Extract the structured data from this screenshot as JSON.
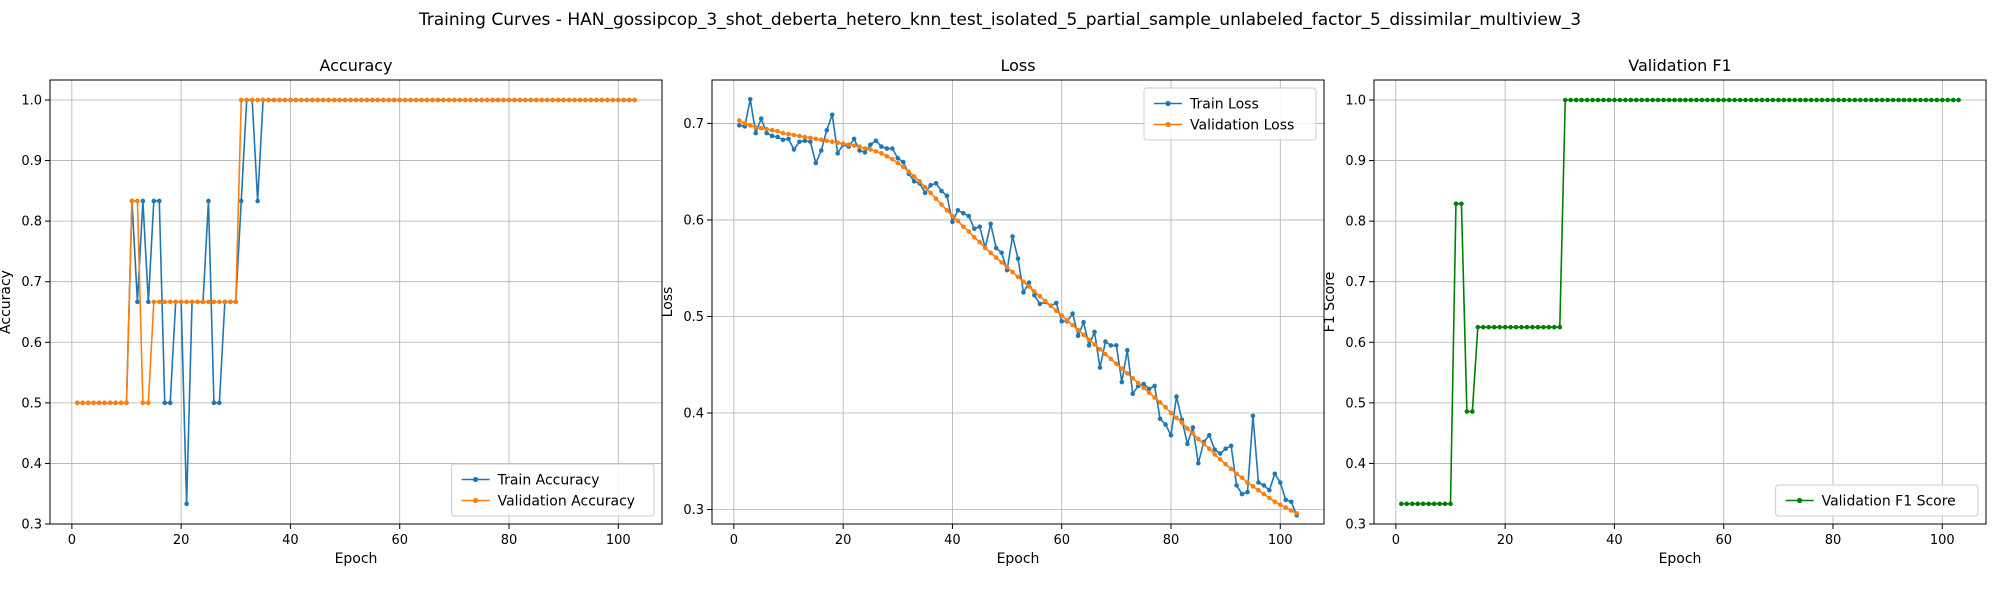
{
  "figure": {
    "title": "Training Curves - HAN_gossipcop_3_shot_deberta_hetero_knn_test_isolated_5_partial_sample_unlabeled_factor_5_dissimilar_multiview_3"
  },
  "colors": {
    "train": "#1f77b4",
    "validation": "#ff7f0e",
    "f1": "#008000",
    "grid": "#b0b0b0",
    "axis": "#000000"
  },
  "chart_data": [
    {
      "type": "line",
      "title": "Accuracy",
      "xlabel": "Epoch",
      "ylabel": "Accuracy",
      "xlim": [
        -4,
        108
      ],
      "ylim": [
        0.3,
        1.033
      ],
      "xticks": [
        0,
        20,
        40,
        60,
        80,
        100
      ],
      "yticks": [
        0.3,
        0.4,
        0.5,
        0.6,
        0.7,
        0.8,
        0.9,
        1.0
      ],
      "ytick_labels": [
        "0.3",
        "0.4",
        "0.5",
        "0.6",
        "0.7",
        "0.8",
        "0.9",
        "1.0"
      ],
      "grid": true,
      "legend_position": "lower-right",
      "series": [
        {
          "name": "Train Accuracy",
          "color_key": "train",
          "x_start": 1,
          "values": [
            0.5,
            0.5,
            0.5,
            0.5,
            0.5,
            0.5,
            0.5,
            0.5,
            0.5,
            0.5,
            0.8333,
            0.6667,
            0.8333,
            0.6667,
            0.8333,
            0.8333,
            0.5,
            0.5,
            0.6667,
            0.6667,
            0.3333,
            0.6667,
            0.6667,
            0.6667,
            0.8333,
            0.5,
            0.5,
            0.6667,
            0.6667,
            0.6667,
            0.8333,
            1.0,
            1.0,
            0.8333,
            1.0,
            1.0,
            1.0,
            1.0,
            1.0,
            1.0,
            1.0,
            1.0,
            1.0,
            1.0,
            1.0,
            1.0,
            1.0,
            1.0,
            1.0,
            1.0,
            1.0,
            1.0,
            1.0,
            1.0,
            1.0,
            1.0,
            1.0,
            1.0,
            1.0,
            1.0,
            1.0,
            1.0,
            1.0,
            1.0,
            1.0,
            1.0,
            1.0,
            1.0,
            1.0,
            1.0,
            1.0,
            1.0,
            1.0,
            1.0,
            1.0,
            1.0,
            1.0,
            1.0,
            1.0,
            1.0,
            1.0,
            1.0,
            1.0,
            1.0,
            1.0,
            1.0,
            1.0,
            1.0,
            1.0,
            1.0,
            1.0,
            1.0,
            1.0,
            1.0,
            1.0,
            1.0,
            1.0,
            1.0,
            1.0,
            1.0,
            1.0,
            1.0,
            1.0
          ]
        },
        {
          "name": "Validation Accuracy",
          "color_key": "validation",
          "x_start": 1,
          "values": [
            0.5,
            0.5,
            0.5,
            0.5,
            0.5,
            0.5,
            0.5,
            0.5,
            0.5,
            0.5,
            0.8333,
            0.8333,
            0.5,
            0.5,
            0.6667,
            0.6667,
            0.6667,
            0.6667,
            0.6667,
            0.6667,
            0.6667,
            0.6667,
            0.6667,
            0.6667,
            0.6667,
            0.6667,
            0.6667,
            0.6667,
            0.6667,
            0.6667,
            1.0,
            1.0,
            1.0,
            1.0,
            1.0,
            1.0,
            1.0,
            1.0,
            1.0,
            1.0,
            1.0,
            1.0,
            1.0,
            1.0,
            1.0,
            1.0,
            1.0,
            1.0,
            1.0,
            1.0,
            1.0,
            1.0,
            1.0,
            1.0,
            1.0,
            1.0,
            1.0,
            1.0,
            1.0,
            1.0,
            1.0,
            1.0,
            1.0,
            1.0,
            1.0,
            1.0,
            1.0,
            1.0,
            1.0,
            1.0,
            1.0,
            1.0,
            1.0,
            1.0,
            1.0,
            1.0,
            1.0,
            1.0,
            1.0,
            1.0,
            1.0,
            1.0,
            1.0,
            1.0,
            1.0,
            1.0,
            1.0,
            1.0,
            1.0,
            1.0,
            1.0,
            1.0,
            1.0,
            1.0,
            1.0,
            1.0,
            1.0,
            1.0,
            1.0,
            1.0,
            1.0,
            1.0,
            1.0
          ]
        }
      ]
    },
    {
      "type": "line",
      "title": "Loss",
      "xlabel": "Epoch",
      "ylabel": "Loss",
      "xlim": [
        -4,
        108
      ],
      "ylim": [
        0.285,
        0.745
      ],
      "xticks": [
        0,
        20,
        40,
        60,
        80,
        100
      ],
      "yticks": [
        0.3,
        0.4,
        0.5,
        0.6,
        0.7
      ],
      "ytick_labels": [
        "0.3",
        "0.4",
        "0.5",
        "0.6",
        "0.7"
      ],
      "grid": true,
      "legend_position": "upper-right",
      "series": [
        {
          "name": "Train Loss",
          "color_key": "train",
          "x_start": 1,
          "values": [
            0.698,
            0.697,
            0.725,
            0.69,
            0.705,
            0.69,
            0.687,
            0.686,
            0.683,
            0.684,
            0.673,
            0.681,
            0.682,
            0.681,
            0.659,
            0.672,
            0.693,
            0.709,
            0.669,
            0.678,
            0.676,
            0.684,
            0.672,
            0.67,
            0.678,
            0.682,
            0.676,
            0.674,
            0.674,
            0.664,
            0.66,
            0.648,
            0.64,
            0.638,
            0.628,
            0.636,
            0.638,
            0.63,
            0.625,
            0.598,
            0.61,
            0.607,
            0.604,
            0.591,
            0.593,
            0.571,
            0.596,
            0.571,
            0.566,
            0.548,
            0.583,
            0.56,
            0.525,
            0.535,
            0.522,
            0.513,
            0.515,
            0.511,
            0.514,
            0.495,
            0.495,
            0.503,
            0.48,
            0.494,
            0.47,
            0.484,
            0.447,
            0.474,
            0.47,
            0.47,
            0.432,
            0.465,
            0.42,
            0.428,
            0.43,
            0.425,
            0.428,
            0.394,
            0.388,
            0.377,
            0.417,
            0.393,
            0.368,
            0.385,
            0.348,
            0.37,
            0.377,
            0.362,
            0.358,
            0.363,
            0.366,
            0.325,
            0.316,
            0.318,
            0.397,
            0.328,
            0.325,
            0.32,
            0.337,
            0.328,
            0.31,
            0.308,
            0.294
          ]
        },
        {
          "name": "Validation Loss",
          "color_key": "validation",
          "x_start": 1,
          "values": [
            0.703,
            0.7,
            0.698,
            0.696,
            0.695,
            0.694,
            0.693,
            0.692,
            0.69,
            0.689,
            0.688,
            0.687,
            0.686,
            0.685,
            0.684,
            0.683,
            0.682,
            0.681,
            0.68,
            0.679,
            0.678,
            0.677,
            0.676,
            0.674,
            0.673,
            0.671,
            0.669,
            0.666,
            0.663,
            0.659,
            0.655,
            0.65,
            0.645,
            0.64,
            0.634,
            0.628,
            0.622,
            0.616,
            0.61,
            0.604,
            0.599,
            0.593,
            0.588,
            0.582,
            0.577,
            0.571,
            0.566,
            0.561,
            0.556,
            0.551,
            0.546,
            0.541,
            0.536,
            0.531,
            0.526,
            0.521,
            0.516,
            0.511,
            0.506,
            0.501,
            0.496,
            0.491,
            0.486,
            0.481,
            0.476,
            0.471,
            0.466,
            0.461,
            0.456,
            0.451,
            0.446,
            0.441,
            0.436,
            0.431,
            0.426,
            0.421,
            0.416,
            0.411,
            0.406,
            0.4,
            0.395,
            0.39,
            0.384,
            0.379,
            0.373,
            0.368,
            0.363,
            0.357,
            0.352,
            0.347,
            0.342,
            0.337,
            0.333,
            0.328,
            0.324,
            0.32,
            0.316,
            0.312,
            0.308,
            0.305,
            0.302,
            0.299,
            0.296
          ]
        }
      ]
    },
    {
      "type": "line",
      "title": "Validation F1",
      "xlabel": "Epoch",
      "ylabel": "F1 Score",
      "xlim": [
        -4,
        108
      ],
      "ylim": [
        0.3,
        1.033
      ],
      "xticks": [
        0,
        20,
        40,
        60,
        80,
        100
      ],
      "yticks": [
        0.3,
        0.4,
        0.5,
        0.6,
        0.7,
        0.8,
        0.9,
        1.0
      ],
      "ytick_labels": [
        "0.3",
        "0.4",
        "0.5",
        "0.6",
        "0.7",
        "0.8",
        "0.9",
        "1.0"
      ],
      "grid": true,
      "legend_position": "lower-right",
      "series": [
        {
          "name": "Validation F1 Score",
          "color_key": "f1",
          "x_start": 1,
          "values": [
            0.3333,
            0.3333,
            0.3333,
            0.3333,
            0.3333,
            0.3333,
            0.3333,
            0.3333,
            0.3333,
            0.3333,
            0.8286,
            0.8286,
            0.4857,
            0.4857,
            0.625,
            0.625,
            0.625,
            0.625,
            0.625,
            0.625,
            0.625,
            0.625,
            0.625,
            0.625,
            0.625,
            0.625,
            0.625,
            0.625,
            0.625,
            0.625,
            1.0,
            1.0,
            1.0,
            1.0,
            1.0,
            1.0,
            1.0,
            1.0,
            1.0,
            1.0,
            1.0,
            1.0,
            1.0,
            1.0,
            1.0,
            1.0,
            1.0,
            1.0,
            1.0,
            1.0,
            1.0,
            1.0,
            1.0,
            1.0,
            1.0,
            1.0,
            1.0,
            1.0,
            1.0,
            1.0,
            1.0,
            1.0,
            1.0,
            1.0,
            1.0,
            1.0,
            1.0,
            1.0,
            1.0,
            1.0,
            1.0,
            1.0,
            1.0,
            1.0,
            1.0,
            1.0,
            1.0,
            1.0,
            1.0,
            1.0,
            1.0,
            1.0,
            1.0,
            1.0,
            1.0,
            1.0,
            1.0,
            1.0,
            1.0,
            1.0,
            1.0,
            1.0,
            1.0,
            1.0,
            1.0,
            1.0,
            1.0,
            1.0,
            1.0,
            1.0,
            1.0,
            1.0,
            1.0
          ]
        }
      ]
    }
  ]
}
